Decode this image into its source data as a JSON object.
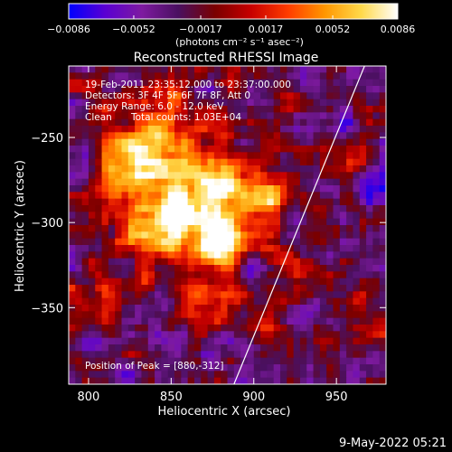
{
  "chart_data": {
    "type": "heatmap",
    "title": "Reconstructed RHESSI Image",
    "xlabel": "Heliocentric X (arcsec)",
    "ylabel": "Heliocentric Y (arcsec)",
    "xlim": [
      788,
      980
    ],
    "ylim": [
      -395,
      -208
    ],
    "x_ticks": [
      800,
      850,
      900,
      950
    ],
    "x_tick_labels": [
      "800",
      "850",
      "900",
      "950"
    ],
    "y_ticks": [
      -250,
      -300,
      -350
    ],
    "y_tick_labels": [
      "−250",
      "−300",
      "−350"
    ],
    "colorbar": {
      "range": [
        -0.0086,
        0.0086
      ],
      "ticks": [
        -0.0086,
        -0.0052,
        -0.0017,
        0.0017,
        0.0052,
        0.0086
      ],
      "tick_labels": [
        "−0.0086",
        "−0.0052",
        "−0.0017",
        "0.0017",
        "0.0052",
        "0.0086"
      ],
      "unit_label": "(photons cm⁻² s⁻¹ asec⁻²)",
      "colors": [
        "#0000ff",
        "#5a00d2",
        "#7e1aa0",
        "#4a1060",
        "#7a0000",
        "#c80000",
        "#ff3c00",
        "#ff9600",
        "#ffd94a",
        "#ffffff"
      ]
    },
    "annotations": {
      "time_range": "19-Feb-2011 23:35:12.000 to 23:37:00.000",
      "detectors": "Detectors: 3F 4F 5F 6F 7F 8F, Att 0",
      "energy_range": "Energy Range: 6.0 - 12.0 keV",
      "method": "Clean",
      "total_counts": "Total counts: 1.03E+04",
      "peak": "Position of Peak = [880,-312]"
    },
    "peak_position": [
      880,
      -312
    ],
    "limb_line": [
      [
        888,
        -395
      ],
      [
        967,
        -208
      ]
    ],
    "background_grid": {
      "nx": 48,
      "ny": 48,
      "noise_seed": 7
    },
    "sources": [
      {
        "x": 880,
        "y": -312,
        "intensity": 1.0,
        "sigma": 9
      },
      {
        "x": 866,
        "y": -292,
        "intensity": 0.78,
        "sigma": 20
      },
      {
        "x": 846,
        "y": -268,
        "intensity": 0.62,
        "sigma": 18
      },
      {
        "x": 828,
        "y": -248,
        "intensity": 0.52,
        "sigma": 15
      },
      {
        "x": 900,
        "y": -282,
        "intensity": 0.58,
        "sigma": 16
      },
      {
        "x": 838,
        "y": -305,
        "intensity": 0.55,
        "sigma": 14
      },
      {
        "x": 870,
        "y": -342,
        "intensity": 0.45,
        "sigma": 12
      },
      {
        "x": 818,
        "y": -275,
        "intensity": 0.38,
        "sigma": 10
      },
      {
        "x": 958,
        "y": -262,
        "intensity": 0.42,
        "sigma": 8
      },
      {
        "x": 812,
        "y": -345,
        "intensity": 0.3,
        "sigma": 10
      },
      {
        "x": 930,
        "y": -325,
        "intensity": 0.28,
        "sigma": 9
      },
      {
        "x": 905,
        "y": -360,
        "intensity": 0.25,
        "sigma": 10
      },
      {
        "x": 848,
        "y": -225,
        "intensity": 0.32,
        "sigma": 9
      },
      {
        "x": 945,
        "y": -372,
        "intensity": 0.26,
        "sigma": 8
      }
    ]
  },
  "footer": {
    "date_stamp": "9-May-2022 05:21"
  }
}
